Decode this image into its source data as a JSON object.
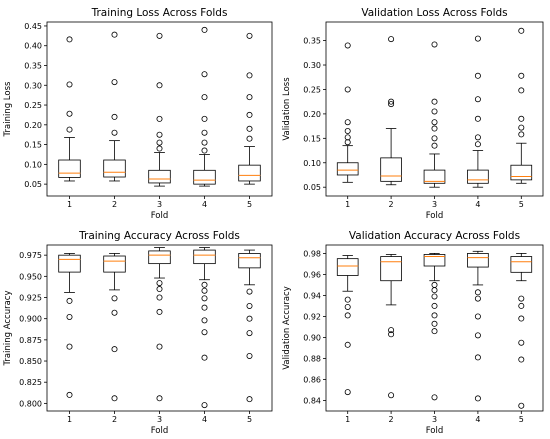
{
  "chart_data": [
    {
      "type": "box",
      "title": "Training Loss Across Folds",
      "xlabel": "Fold",
      "ylabel": "Training Loss",
      "categories": [
        "1",
        "2",
        "3",
        "4",
        "5"
      ],
      "ylim": [
        0.02,
        0.46
      ],
      "yticks": [
        "0.05",
        "0.10",
        "0.15",
        "0.20",
        "0.25",
        "0.30",
        "0.35",
        "0.40",
        "0.45"
      ],
      "ytick_values": [
        0.05,
        0.1,
        0.15,
        0.2,
        0.25,
        0.3,
        0.35,
        0.4,
        0.45
      ],
      "boxes": [
        {
          "whislo": 0.058,
          "q1": 0.067,
          "med": 0.078,
          "q3": 0.111,
          "whishi": 0.168,
          "fliers": [
            0.188,
            0.228,
            0.302,
            0.416
          ]
        },
        {
          "whislo": 0.058,
          "q1": 0.068,
          "med": 0.08,
          "q3": 0.111,
          "whishi": 0.16,
          "fliers": [
            0.18,
            0.22,
            0.308,
            0.428
          ]
        },
        {
          "whislo": 0.045,
          "q1": 0.053,
          "med": 0.063,
          "q3": 0.085,
          "whishi": 0.13,
          "fliers": [
            0.14,
            0.155,
            0.175,
            0.215,
            0.3,
            0.425
          ]
        },
        {
          "whislo": 0.045,
          "q1": 0.05,
          "med": 0.06,
          "q3": 0.085,
          "whishi": 0.125,
          "fliers": [
            0.135,
            0.155,
            0.18,
            0.215,
            0.27,
            0.328,
            0.44
          ]
        },
        {
          "whislo": 0.05,
          "q1": 0.058,
          "med": 0.072,
          "q3": 0.098,
          "whishi": 0.145,
          "fliers": [
            0.165,
            0.19,
            0.225,
            0.27,
            0.325,
            0.425
          ]
        }
      ]
    },
    {
      "type": "box",
      "title": "Validation Loss Across Folds",
      "xlabel": "Fold",
      "ylabel": "Validation Loss",
      "categories": [
        "1",
        "2",
        "3",
        "4",
        "5"
      ],
      "ylim": [
        0.032,
        0.388
      ],
      "yticks": [
        "0.05",
        "0.10",
        "0.15",
        "0.20",
        "0.25",
        "0.30",
        "0.35"
      ],
      "ytick_values": [
        0.05,
        0.1,
        0.15,
        0.2,
        0.25,
        0.3,
        0.35
      ],
      "boxes": [
        {
          "whislo": 0.06,
          "q1": 0.075,
          "med": 0.085,
          "q3": 0.1,
          "whishi": 0.135,
          "fliers": [
            0.142,
            0.152,
            0.165,
            0.183,
            0.25,
            0.34
          ]
        },
        {
          "whislo": 0.055,
          "q1": 0.062,
          "med": 0.073,
          "q3": 0.11,
          "whishi": 0.17,
          "fliers": [
            0.22,
            0.225,
            0.353
          ]
        },
        {
          "whislo": 0.05,
          "q1": 0.058,
          "med": 0.062,
          "q3": 0.085,
          "whishi": 0.118,
          "fliers": [
            0.135,
            0.15,
            0.17,
            0.183,
            0.205,
            0.225,
            0.342
          ]
        },
        {
          "whislo": 0.05,
          "q1": 0.058,
          "med": 0.065,
          "q3": 0.085,
          "whishi": 0.125,
          "fliers": [
            0.138,
            0.152,
            0.19,
            0.23,
            0.278,
            0.354
          ]
        },
        {
          "whislo": 0.058,
          "q1": 0.065,
          "med": 0.072,
          "q3": 0.095,
          "whishi": 0.14,
          "fliers": [
            0.158,
            0.172,
            0.19,
            0.248,
            0.278,
            0.37
          ]
        }
      ]
    },
    {
      "type": "box",
      "title": "Training Accuracy Across Folds",
      "xlabel": "Fold",
      "ylabel": "Training Accuracy",
      "categories": [
        "1",
        "2",
        "3",
        "4",
        "5"
      ],
      "ylim": [
        0.791,
        0.987
      ],
      "yticks": [
        "0.800",
        "0.825",
        "0.850",
        "0.875",
        "0.900",
        "0.925",
        "0.950",
        "0.975"
      ],
      "ytick_values": [
        0.8,
        0.825,
        0.85,
        0.875,
        0.9,
        0.925,
        0.95,
        0.975
      ],
      "boxes": [
        {
          "whislo": 0.931,
          "q1": 0.955,
          "med": 0.97,
          "q3": 0.975,
          "whishi": 0.977,
          "fliers": [
            0.921,
            0.902,
            0.867,
            0.81
          ]
        },
        {
          "whislo": 0.934,
          "q1": 0.955,
          "med": 0.968,
          "q3": 0.974,
          "whishi": 0.977,
          "fliers": [
            0.924,
            0.907,
            0.864,
            0.806
          ]
        },
        {
          "whislo": 0.948,
          "q1": 0.965,
          "med": 0.975,
          "q3": 0.98,
          "whishi": 0.984,
          "fliers": [
            0.942,
            0.935,
            0.925,
            0.908,
            0.867,
            0.806
          ]
        },
        {
          "whislo": 0.946,
          "q1": 0.965,
          "med": 0.975,
          "q3": 0.981,
          "whishi": 0.984,
          "fliers": [
            0.94,
            0.933,
            0.924,
            0.913,
            0.898,
            0.884,
            0.854,
            0.798
          ]
        },
        {
          "whislo": 0.94,
          "q1": 0.96,
          "med": 0.972,
          "q3": 0.977,
          "whishi": 0.981,
          "fliers": [
            0.932,
            0.915,
            0.9,
            0.883,
            0.856,
            0.805
          ]
        }
      ]
    },
    {
      "type": "box",
      "title": "Validation Accuracy Across Folds",
      "xlabel": "Fold",
      "ylabel": "Validation Accuracy",
      "categories": [
        "1",
        "2",
        "3",
        "4",
        "5"
      ],
      "ylim": [
        0.83,
        0.988
      ],
      "yticks": [
        "0.84",
        "0.86",
        "0.88",
        "0.90",
        "0.92",
        "0.94",
        "0.96",
        "0.98"
      ],
      "ytick_values": [
        0.84,
        0.86,
        0.88,
        0.9,
        0.92,
        0.94,
        0.96,
        0.98
      ],
      "boxes": [
        {
          "whislo": 0.944,
          "q1": 0.959,
          "med": 0.968,
          "q3": 0.975,
          "whishi": 0.978,
          "fliers": [
            0.936,
            0.929,
            0.921,
            0.893,
            0.848
          ]
        },
        {
          "whislo": 0.931,
          "q1": 0.954,
          "med": 0.972,
          "q3": 0.977,
          "whishi": 0.979,
          "fliers": [
            0.907,
            0.903,
            0.845
          ]
        },
        {
          "whislo": 0.954,
          "q1": 0.968,
          "med": 0.977,
          "q3": 0.979,
          "whishi": 0.98,
          "fliers": [
            0.95,
            0.945,
            0.939,
            0.93,
            0.921,
            0.913,
            0.906,
            0.843
          ]
        },
        {
          "whislo": 0.95,
          "q1": 0.967,
          "med": 0.976,
          "q3": 0.98,
          "whishi": 0.982,
          "fliers": [
            0.943,
            0.937,
            0.92,
            0.902,
            0.881,
            0.842
          ]
        },
        {
          "whislo": 0.954,
          "q1": 0.962,
          "med": 0.972,
          "q3": 0.977,
          "whishi": 0.98,
          "fliers": [
            0.937,
            0.93,
            0.918,
            0.895,
            0.879,
            0.835
          ]
        }
      ]
    }
  ],
  "colors": {
    "box": "#000000",
    "median": "#ff7f0e",
    "background": "#ffffff"
  }
}
